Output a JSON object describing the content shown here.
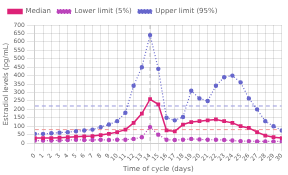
{
  "chart_data": {
    "type": "line",
    "x": [
      0,
      1,
      2,
      3,
      4,
      5,
      6,
      7,
      8,
      9,
      10,
      11,
      12,
      13,
      14,
      15,
      16,
      17,
      18,
      19,
      20,
      21,
      22,
      23,
      24,
      25,
      26,
      27,
      28,
      29,
      30
    ],
    "series": [
      {
        "name": "Median",
        "color": "#dd2277",
        "marker": "square",
        "line_style": "solid",
        "values": [
          30,
          30,
          30,
          32,
          35,
          38,
          40,
          42,
          48,
          55,
          65,
          80,
          120,
          175,
          260,
          230,
          75,
          70,
          110,
          125,
          130,
          135,
          140,
          130,
          120,
          100,
          90,
          65,
          45,
          35,
          30
        ]
      },
      {
        "name": "Lower limit (5%)",
        "color": "#bb44bb",
        "marker": "circle",
        "line_style": "dotted",
        "values": [
          15,
          15,
          15,
          16,
          18,
          20,
          18,
          18,
          20,
          18,
          20,
          20,
          25,
          35,
          95,
          50,
          20,
          18,
          20,
          25,
          22,
          20,
          20,
          18,
          15,
          12,
          12,
          10,
          10,
          10,
          10
        ]
      },
      {
        "name": "Upper limit (95%)",
        "color": "#6666cc",
        "marker": "circle",
        "line_style": "dotted",
        "values": [
          55,
          55,
          58,
          62,
          65,
          70,
          75,
          80,
          95,
          110,
          130,
          180,
          340,
          450,
          640,
          440,
          150,
          135,
          155,
          310,
          265,
          250,
          340,
          390,
          400,
          360,
          265,
          200,
          130,
          100,
          75
        ]
      }
    ],
    "xlabel": "Time of cycle (days)",
    "ylabel": "Estradiol levels (pg/mL)",
    "xlim": [
      0,
      30
    ],
    "xticks": [
      0,
      1,
      2,
      3,
      4,
      5,
      6,
      7,
      8,
      9,
      10,
      11,
      12,
      13,
      14,
      15,
      16,
      17,
      18,
      19,
      20,
      21,
      22,
      23,
      24,
      25,
      26,
      27,
      28,
      29,
      30
    ],
    "ylim": [
      0,
      700
    ],
    "yticks": [
      0,
      50,
      100,
      150,
      200,
      250,
      300,
      350,
      400,
      450,
      500,
      550,
      600,
      650,
      700
    ],
    "grid": true,
    "legend": "upper left",
    "hlines": [
      {
        "value": 80,
        "color": "#ee9999",
        "line_style": "dashed"
      },
      {
        "value": 220,
        "color": "#9999dd",
        "line_style": "dashed"
      }
    ],
    "vlines": [
      {
        "value": 14,
        "color": "#bbbbbb",
        "line_style": "dashed"
      }
    ]
  }
}
